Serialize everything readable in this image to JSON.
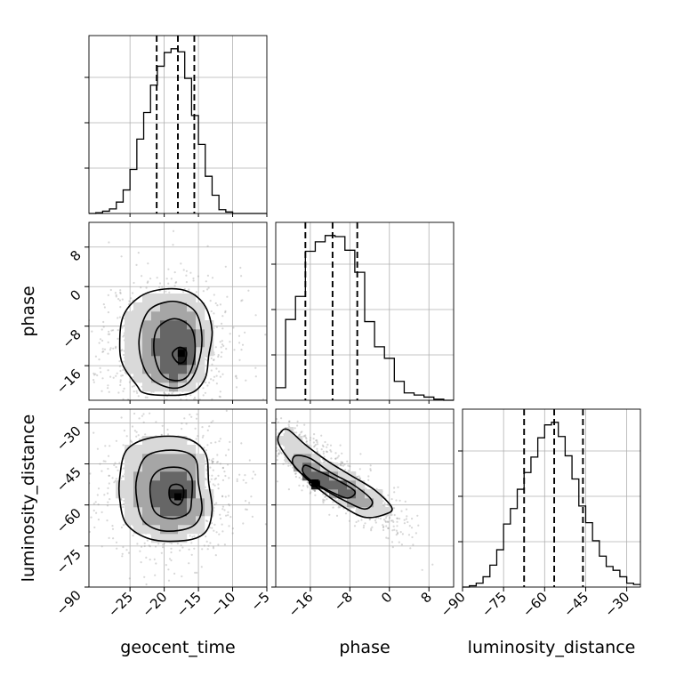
{
  "chart_data": {
    "type": "corner",
    "parameters": [
      "geocent_time",
      "phase",
      "luminosity_distance"
    ],
    "axis_labels": {
      "geocent_time": "geocent_time",
      "phase": "phase",
      "luminosity_distance": "luminosity_distance"
    },
    "ranges": {
      "geocent_time": [
        -31,
        -5
      ],
      "phase": [
        -23,
        13
      ],
      "luminosity_distance": [
        -90,
        -25
      ]
    },
    "ticks": {
      "geocent_time": [
        -25,
        -20,
        -15,
        -10,
        -5
      ],
      "phase": [
        -16,
        -8,
        0,
        8
      ],
      "luminosity_distance": [
        -90,
        -75,
        -60,
        -45,
        -30
      ]
    },
    "tick_labels": {
      "geocent_time": [
        "−25",
        "−20",
        "−15",
        "−10",
        "−5"
      ],
      "phase": [
        "−16",
        "−8",
        "0",
        "8"
      ],
      "luminosity_distance": [
        "−90",
        "−75",
        "−60",
        "−45",
        "−30"
      ]
    },
    "quantiles": {
      "geocent_time": [
        -21.1,
        -18.0,
        -15.6
      ],
      "phase": [
        -17.0,
        -11.5,
        -6.5
      ],
      "luminosity_distance": [
        -67.5,
        -56.5,
        -46.0
      ]
    },
    "histograms": {
      "geocent_time": {
        "edges": [
          -31,
          -30,
          -29,
          -28,
          -27,
          -26,
          -25,
          -24,
          -23,
          -22,
          -21,
          -20,
          -19,
          -18,
          -17,
          -16,
          -15,
          -14,
          -13,
          -12,
          -11,
          -10,
          -9,
          -8,
          -7,
          -6,
          -5
        ],
        "counts": [
          0,
          1,
          3,
          6,
          15,
          31,
          58,
          98,
          133,
          169,
          194,
          212,
          217,
          213,
          178,
          129,
          91,
          49,
          24,
          5,
          2,
          0,
          0,
          0,
          0,
          0
        ]
      },
      "phase": {
        "edges": [
          -23,
          -21,
          -19,
          -17,
          -15,
          -13,
          -11,
          -9,
          -7,
          -5,
          -3,
          -1,
          1,
          3,
          5,
          7,
          9,
          11,
          13
        ],
        "counts": [
          12,
          77,
          99,
          142,
          151,
          157,
          156,
          143,
          122,
          75,
          51,
          40,
          18,
          7,
          5,
          3,
          1,
          0
        ]
      },
      "luminosity_distance": {
        "edges": [
          -90,
          -87.5,
          -85,
          -82.5,
          -80,
          -77.5,
          -75,
          -72.5,
          -70,
          -67.5,
          -65,
          -62.5,
          -60,
          -57.5,
          -55,
          -52.5,
          -50,
          -47.5,
          -45,
          -42.5,
          -40,
          -37.5,
          -35,
          -32.5,
          -30,
          -27.5,
          -25
        ],
        "counts": [
          0,
          1,
          3,
          8,
          17,
          29,
          49,
          61,
          76,
          89,
          101,
          116,
          126,
          128,
          117,
          102,
          84,
          63,
          50,
          36,
          24,
          16,
          13,
          8,
          3,
          2
        ]
      }
    },
    "contours_2d": [
      {
        "x": "geocent_time",
        "y": "phase",
        "peak": [
          -17.5,
          -13.5
        ],
        "levels": [
          [
            [
              -24.0,
              -20.0
            ],
            [
              -26.0,
              -16.0
            ],
            [
              -26.5,
              -12.0
            ],
            [
              -26.0,
              -6.0
            ],
            [
              -23.5,
              -2.0
            ],
            [
              -20.0,
              -0.5
            ],
            [
              -16.5,
              -1.0
            ],
            [
              -14.0,
              -4.0
            ],
            [
              -13.0,
              -9.0
            ],
            [
              -13.5,
              -14.0
            ],
            [
              -14.0,
              -18.5
            ],
            [
              -16.0,
              -21.5
            ],
            [
              -20.0,
              -22.0
            ],
            [
              -23.0,
              -21.5
            ]
          ],
          [
            [
              -22.0,
              -18.5
            ],
            [
              -23.5,
              -14.0
            ],
            [
              -23.5,
              -9.0
            ],
            [
              -22.0,
              -4.5
            ],
            [
              -18.5,
              -3.0
            ],
            [
              -15.5,
              -5.0
            ],
            [
              -14.5,
              -10.0
            ],
            [
              -15.0,
              -15.5
            ],
            [
              -16.5,
              -19.5
            ],
            [
              -19.0,
              -20.5
            ]
          ],
          [
            [
              -20.5,
              -17.5
            ],
            [
              -21.5,
              -13.0
            ],
            [
              -21.0,
              -8.5
            ],
            [
              -18.5,
              -6.5
            ],
            [
              -16.0,
              -8.5
            ],
            [
              -15.5,
              -13.5
            ],
            [
              -16.5,
              -18.0
            ],
            [
              -18.5,
              -19.0
            ]
          ],
          [
            [
              -18.3,
              -15.0
            ],
            [
              -18.8,
              -13.5
            ],
            [
              -17.8,
              -12.3
            ],
            [
              -16.8,
              -13.0
            ],
            [
              -16.9,
              -14.8
            ],
            [
              -17.6,
              -15.5
            ]
          ]
        ]
      },
      {
        "x": "geocent_time",
        "y": "luminosity_distance",
        "peak": [
          -18.0,
          -57.0
        ],
        "levels": [
          [
            [
              -26.5,
              -50.0
            ],
            [
              -25.5,
              -40.0
            ],
            [
              -22.0,
              -35.5
            ],
            [
              -17.0,
              -35.5
            ],
            [
              -14.0,
              -41.0
            ],
            [
              -13.5,
              -52.0
            ],
            [
              -13.0,
              -62.0
            ],
            [
              -14.0,
              -70.0
            ],
            [
              -17.0,
              -73.0
            ],
            [
              -22.0,
              -72.5
            ],
            [
              -25.5,
              -67.0
            ],
            [
              -26.5,
              -58.0
            ]
          ],
          [
            [
              -24.0,
              -50.0
            ],
            [
              -22.5,
              -42.0
            ],
            [
              -18.5,
              -40.0
            ],
            [
              -15.5,
              -43.0
            ],
            [
              -15.0,
              -52.0
            ],
            [
              -14.5,
              -62.0
            ],
            [
              -16.0,
              -68.0
            ],
            [
              -20.0,
              -69.5
            ],
            [
              -23.0,
              -66.0
            ],
            [
              -24.0,
              -58.0
            ]
          ],
          [
            [
              -22.0,
              -52.0
            ],
            [
              -20.5,
              -47.0
            ],
            [
              -17.5,
              -46.5
            ],
            [
              -16.0,
              -50.0
            ],
            [
              -16.0,
              -58.0
            ],
            [
              -16.5,
              -63.0
            ],
            [
              -19.0,
              -65.0
            ],
            [
              -21.5,
              -62.0
            ]
          ],
          [
            [
              -19.0,
              -53.0
            ],
            [
              -18.0,
              -52.5
            ],
            [
              -17.2,
              -54.0
            ],
            [
              -17.3,
              -58.0
            ],
            [
              -18.0,
              -60.0
            ],
            [
              -19.0,
              -58.5
            ],
            [
              -19.3,
              -55.5
            ]
          ]
        ]
      },
      {
        "x": "phase",
        "y": "luminosity_distance",
        "peak": [
          -15.0,
          -52.0
        ],
        "levels": [
          [
            [
              -22.0,
              -33.5
            ],
            [
              -20.5,
              -32.5
            ],
            [
              -17.0,
              -38.0
            ],
            [
              -12.5,
              -44.0
            ],
            [
              -8.0,
              -49.0
            ],
            [
              -3.0,
              -54.5
            ],
            [
              0.5,
              -61.0
            ],
            [
              -1.0,
              -63.5
            ],
            [
              -5.0,
              -64.5
            ],
            [
              -9.0,
              -61.0
            ],
            [
              -13.0,
              -56.0
            ],
            [
              -17.0,
              -50.0
            ],
            [
              -20.5,
              -43.0
            ],
            [
              -22.5,
              -37.0
            ]
          ],
          [
            [
              -19.0,
              -42.0
            ],
            [
              -16.0,
              -43.0
            ],
            [
              -12.0,
              -48.0
            ],
            [
              -7.0,
              -53.0
            ],
            [
              -3.5,
              -58.5
            ],
            [
              -5.0,
              -61.5
            ],
            [
              -9.0,
              -58.5
            ],
            [
              -13.5,
              -54.0
            ],
            [
              -17.5,
              -49.0
            ],
            [
              -19.5,
              -45.0
            ]
          ],
          [
            [
              -17.0,
              -45.5
            ],
            [
              -14.5,
              -47.5
            ],
            [
              -10.5,
              -51.0
            ],
            [
              -7.0,
              -55.0
            ],
            [
              -8.5,
              -57.5
            ],
            [
              -12.0,
              -55.0
            ],
            [
              -15.5,
              -51.5
            ],
            [
              -17.5,
              -48.0
            ]
          ],
          [
            [
              -15.8,
              -51.0
            ],
            [
              -14.5,
              -51.2
            ],
            [
              -14.3,
              -52.8
            ],
            [
              -15.5,
              -53.2
            ],
            [
              -16.2,
              -52.0
            ]
          ]
        ]
      }
    ]
  }
}
